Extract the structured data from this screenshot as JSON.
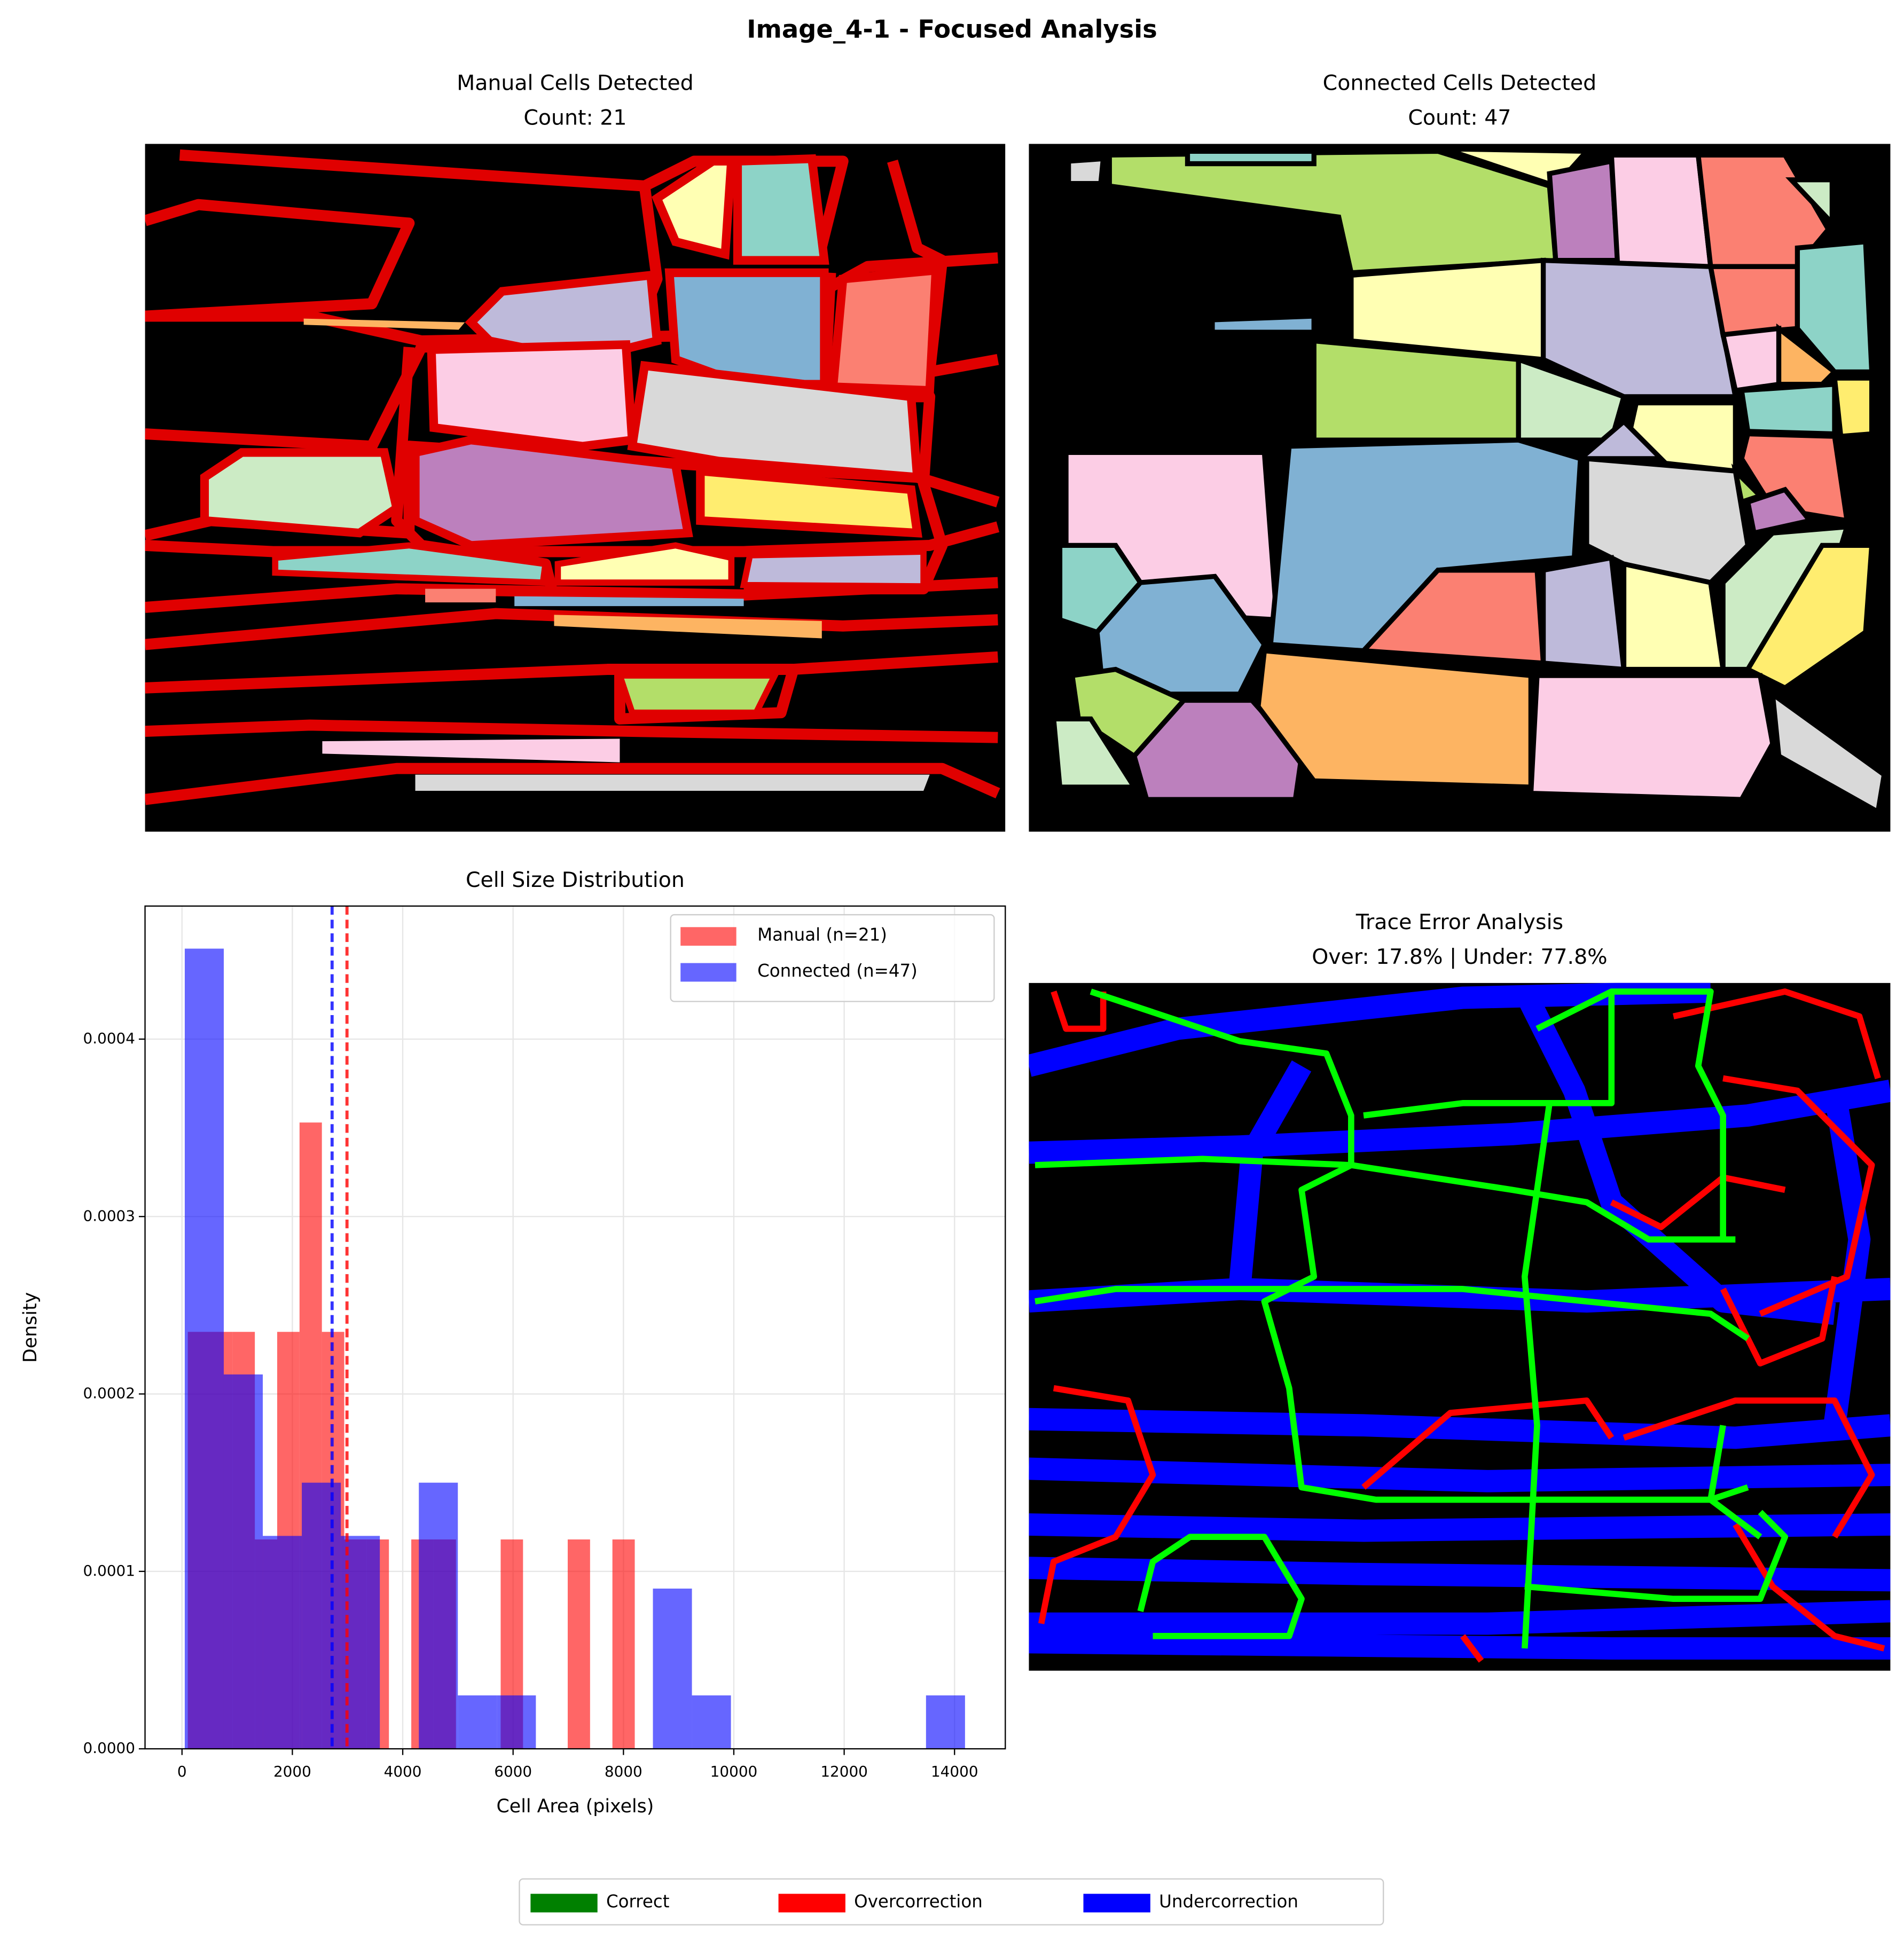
{
  "title": "Image_4-1 - Focused Analysis",
  "chart_data": [
    {
      "type": "image",
      "title": "Manual Cells Detected",
      "subtitle": "Count: 21"
    },
    {
      "type": "image",
      "title": "Connected Cells Detected",
      "subtitle": "Count: 47"
    },
    {
      "type": "histogram",
      "title": "Cell Size Distribution",
      "xlabel": "Cell Area (pixels)",
      "ylabel": "Density",
      "xlim": [
        -670,
        14920
      ],
      "ylim": [
        0,
        0.000475
      ],
      "xticks": [
        0,
        2000,
        4000,
        6000,
        8000,
        10000,
        12000,
        14000
      ],
      "yticks": [
        {
          "value": 0,
          "label": "0.0000"
        },
        {
          "value": 0.0001,
          "label": "0.0001"
        },
        {
          "value": 0.0002,
          "label": "0.0002"
        },
        {
          "value": 0.0003,
          "label": "0.0003"
        },
        {
          "value": 0.0004,
          "label": "0.0004"
        }
      ],
      "grid": true,
      "legend": "upper right",
      "series": [
        {
          "name": "Manual (n=21)",
          "color": "#ff0000",
          "opacity": 0.6,
          "mean": 2990,
          "bins": [
            105,
            510,
            915,
            1320,
            1725,
            2130,
            2535,
            2940,
            3345,
            3750,
            4155,
            4560,
            4965,
            5370,
            5775,
            6180,
            6585,
            6990,
            7395,
            7800,
            8205
          ],
          "values": [
            0.000235,
            0.000235,
            0.000235,
            0.000118,
            0.000235,
            0.000353,
            0.000235,
            0.000118,
            0.000118,
            0,
            0.000118,
            0.000118,
            0,
            0,
            0.000118,
            0,
            0,
            0.000118,
            0,
            0.000118
          ]
        },
        {
          "name": "Connected (n=47)",
          "color": "#0000ff",
          "opacity": 0.6,
          "mean": 2720,
          "bins": [
            50,
            757,
            1464,
            2171,
            2878,
            3585,
            4292,
            4999,
            5706,
            6413,
            7120,
            7827,
            8534,
            9241,
            9948,
            10655,
            11362,
            12069,
            12776,
            13483,
            14190
          ],
          "values": [
            0.000451,
            0.000211,
            0.00012,
            0.00015,
            0.00012,
            0,
            0.00015,
            3.01e-05,
            3.01e-05,
            0,
            0,
            0,
            9.03e-05,
            3.01e-05,
            0,
            0,
            0,
            0,
            0,
            3.01e-05
          ]
        }
      ]
    },
    {
      "type": "image",
      "title": "Trace Error Analysis",
      "subtitle": "Over: 17.8% | Under: 77.8%",
      "legend": [
        {
          "name": "Correct",
          "color": "#008000"
        },
        {
          "name": "Overcorrection",
          "color": "#ff0000"
        },
        {
          "name": "Undercorrection",
          "color": "#0000ff"
        }
      ]
    }
  ]
}
